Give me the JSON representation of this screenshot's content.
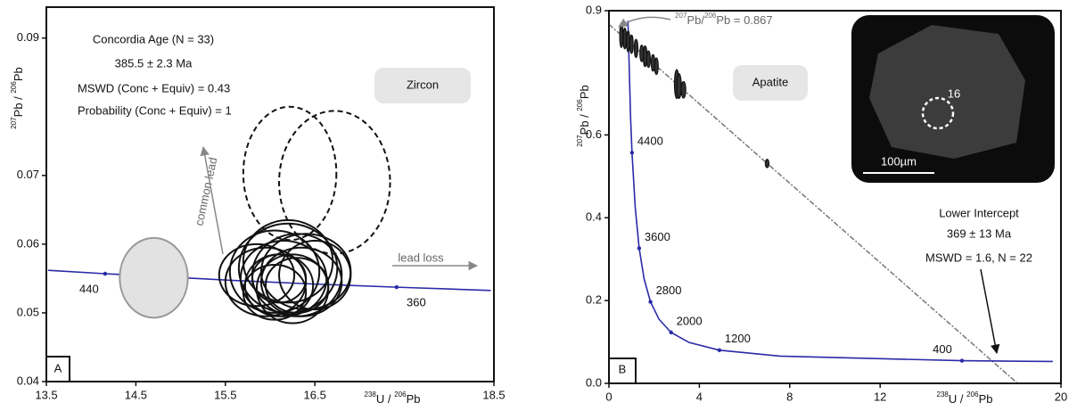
{
  "chart_data": [
    {
      "type": "ellipse",
      "panel": "A",
      "title": "Zircon",
      "age_title": "Concordia Age  (N = 33)",
      "age": "385.5 ± 2.3 Ma",
      "mswd": "MSWD (Conc + Equiv) = 0.43",
      "probability": "Probability (Conc + Equiv) = 1",
      "common_lead": "common lead",
      "lead_loss": "lead loss",
      "xlabel": [
        "238",
        "U / ",
        "206",
        "Pb"
      ],
      "ylabel": [
        "207",
        "Pb / ",
        "206",
        "Pb"
      ],
      "xlim": [
        13.5,
        18.5
      ],
      "ylim": [
        0.04,
        0.0945
      ],
      "xticks": [
        13.5,
        14.5,
        15.5,
        16.5,
        18.5
      ],
      "yticks": [
        0.04,
        0.05,
        0.06,
        0.07,
        0.09
      ],
      "concordia": {
        "color": "#2a2aa8",
        "x": [
          13.519,
          14.156,
          15.62,
          16.469,
          17.413,
          18.464
        ],
        "y": [
          0.05619,
          0.0557,
          0.0547,
          0.05421,
          0.05374,
          0.05326
        ]
      },
      "age_marks": {
        "labels": [
          440,
          360
        ],
        "x": [
          14.156,
          17.413
        ],
        "y": [
          0.0557,
          0.05374
        ]
      },
      "ellipses": [
        {
          "color": "#999999",
          "fill": "#e2e2e2",
          "dashed": false,
          "x": [
            14.7
          ],
          "y": [
            0.0551
          ],
          "sx": [
            0.38
          ],
          "sy": [
            0.0058
          ]
        },
        {
          "color": "#111111",
          "fill": "none",
          "dashed": true,
          "x": [
            16.22,
            16.72
          ],
          "y": [
            0.0703,
            0.069
          ],
          "sx": [
            0.52,
            0.62
          ],
          "sy": [
            0.0097,
            0.0104
          ]
        },
        {
          "color": "#111111",
          "fill": "none",
          "dashed": false,
          "x": [
            15.85,
            15.95,
            16.05,
            16.1,
            16.15,
            16.2,
            16.25,
            16.3,
            16.35,
            16.4,
            16.05,
            16.2,
            16.5,
            16.1,
            16.3
          ],
          "y": [
            0.0555,
            0.0545,
            0.056,
            0.054,
            0.055,
            0.0565,
            0.0535,
            0.0555,
            0.0545,
            0.056,
            0.053,
            0.0575,
            0.0555,
            0.055,
            0.054
          ],
          "sx": [
            0.42,
            0.45,
            0.5,
            0.38,
            0.48,
            0.55,
            0.4,
            0.5,
            0.45,
            0.5,
            0.35,
            0.5,
            0.4,
            0.3,
            0.35
          ],
          "sy": [
            0.0045,
            0.005,
            0.006,
            0.0045,
            0.0055,
            0.0065,
            0.005,
            0.006,
            0.005,
            0.0055,
            0.004,
            0.006,
            0.005,
            0.0035,
            0.004
          ]
        }
      ]
    },
    {
      "type": "ellipse",
      "panel": "B",
      "title": "Apatite",
      "intercept_title": "Lower Intercept",
      "intercept_age": "369 ± 13 Ma",
      "intercept_stats": "MSWD = 1.6, N = 22",
      "common_pb_label": [
        "207",
        "Pb/",
        "206",
        "Pb = 0.867"
      ],
      "spot_label": "16",
      "scale_label": "100µm",
      "xlabel": [
        "238",
        "U / ",
        "206",
        "Pb"
      ],
      "ylabel": [
        "207",
        "Pb / ",
        "206",
        "Pb"
      ],
      "xlim": [
        0,
        20
      ],
      "ylim": [
        0,
        0.9
      ],
      "xticks": [
        0,
        4,
        8,
        12,
        20
      ],
      "yticks": [
        {
          "value": 0,
          "label": "0.0"
        },
        0.2,
        0.4,
        0.6,
        0.9
      ],
      "concordia": {
        "color": "#2a2aa8",
        "x": [
          0.8411,
          0.96,
          1.021,
          1.163,
          1.337,
          1.556,
          1.838,
          2.217,
          2.749,
          3.55,
          4.888,
          7.57,
          15.62,
          19.64
        ],
        "y": [
          0.8757,
          0.639,
          0.557,
          0.4251,
          0.3264,
          0.2524,
          0.1968,
          0.1548,
          0.123,
          0.0987,
          0.0801,
          0.0658,
          0.0547,
          0.0528
        ]
      },
      "age_marks": {
        "labels": [
          4400,
          3600,
          2800,
          2000,
          1200,
          400
        ],
        "x": [
          1.021,
          1.337,
          1.838,
          2.749,
          4.888,
          15.62
        ],
        "y": [
          0.557,
          0.3264,
          0.1968,
          0.123,
          0.0801,
          0.0547
        ]
      },
      "discordia": {
        "color": "#777777",
        "x": [
          0,
          18.08
        ],
        "y": [
          0.867,
          0
        ]
      },
      "ellipses": [
        {
          "color": "#111111",
          "fill": "#333333",
          "dashed": false,
          "x": [
            0.55,
            0.7,
            0.85,
            1.0,
            1.2,
            1.45,
            1.6,
            1.75,
            1.95,
            2.1,
            3.0,
            3.1,
            3.3,
            7.0
          ],
          "y": [
            0.841,
            0.833,
            0.826,
            0.819,
            0.809,
            0.797,
            0.79,
            0.783,
            0.774,
            0.766,
            0.723,
            0.718,
            0.709,
            0.531
          ],
          "sx": [
            0.07,
            0.07,
            0.07,
            0.07,
            0.08,
            0.08,
            0.08,
            0.08,
            0.08,
            0.08,
            0.1,
            0.1,
            0.1,
            0.08
          ],
          "sy": [
            0.03,
            0.025,
            0.025,
            0.022,
            0.022,
            0.02,
            0.025,
            0.02,
            0.02,
            0.02,
            0.035,
            0.03,
            0.02,
            0.01
          ]
        }
      ]
    }
  ]
}
